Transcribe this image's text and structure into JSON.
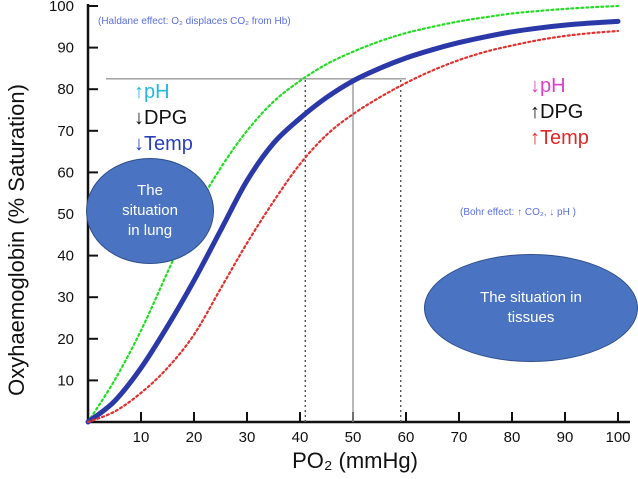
{
  "chart_data": {
    "type": "line",
    "title": "",
    "xlabel": "PO₂ (mmHg)",
    "ylabel": "Oxyhaemoglobin (% Saturation)",
    "xlim": [
      0,
      100
    ],
    "ylim": [
      0,
      100
    ],
    "x_ticks": [
      10,
      20,
      30,
      40,
      50,
      60,
      70,
      80,
      90,
      100
    ],
    "y_ticks": [
      10,
      20,
      30,
      40,
      50,
      60,
      70,
      80,
      90,
      100
    ],
    "grid": false,
    "x": [
      0,
      5,
      10,
      15,
      20,
      25,
      30,
      35,
      40,
      45,
      50,
      55,
      60,
      65,
      70,
      75,
      80,
      85,
      90,
      95,
      100
    ],
    "series": [
      {
        "color": "#22dd22",
        "style": "dotted",
        "values": [
          0,
          10,
          22,
          36,
          50,
          61,
          70,
          77,
          82,
          86,
          89,
          91.5,
          93.5,
          95,
          96.3,
          97.3,
          98.2,
          98.8,
          99.3,
          99.7,
          100
        ]
      },
      {
        "color": "#2a38a8",
        "style": "solid",
        "values": [
          0,
          5,
          13,
          23,
          34,
          46,
          58,
          67,
          73,
          78,
          82,
          85,
          87.5,
          89.5,
          91.2,
          92.6,
          93.8,
          94.7,
          95.4,
          95.9,
          96.3
        ]
      },
      {
        "color": "#e33030",
        "style": "dotted",
        "values": [
          0,
          2.5,
          7,
          13,
          21,
          32,
          43,
          53,
          62,
          69,
          74,
          78,
          81.5,
          84.5,
          87,
          89,
          90.5,
          91.8,
          92.8,
          93.5,
          94
        ]
      }
    ],
    "reference_lines": [
      {
        "type": "horizontal",
        "y": 82.5,
        "from_x": 0,
        "to_x": 60
      },
      {
        "type": "vertical",
        "x": 41,
        "to_y": 82.5
      },
      {
        "type": "vertical",
        "x": 50,
        "to_y": 82.5
      },
      {
        "type": "vertical",
        "x": 59,
        "to_y": 82.5
      }
    ],
    "annotations": {
      "haldane": "(Haldane effect: O₂ displaces CO₂ from Hb)",
      "bohr": "(Bohr effect: ↑ CO₂, ↓ pH )"
    },
    "left_indicators": [
      {
        "arrow": "↑",
        "text": "pH",
        "color": "#22b8e0",
        "arrow_color": "#22b8e0"
      },
      {
        "arrow": "↓",
        "text": "DPG",
        "color": "#111111",
        "arrow_color": "#111111"
      },
      {
        "arrow": "↓",
        "text": "Temp",
        "color": "#2a3fc0",
        "arrow_color": "#2a3fc0"
      }
    ],
    "right_indicators": [
      {
        "arrow": "↓",
        "text": "pH",
        "color": "#e040c8",
        "arrow_color": "#e040c8"
      },
      {
        "arrow": "↑",
        "text": "DPG",
        "color": "#111111",
        "arrow_color": "#111111"
      },
      {
        "arrow": "↑",
        "text": "Temp",
        "color": "#e02828",
        "arrow_color": "#e02828"
      }
    ]
  },
  "callouts": {
    "lung": "The\nsituation\nin lung",
    "tissues": "The situation in\ntissues"
  }
}
